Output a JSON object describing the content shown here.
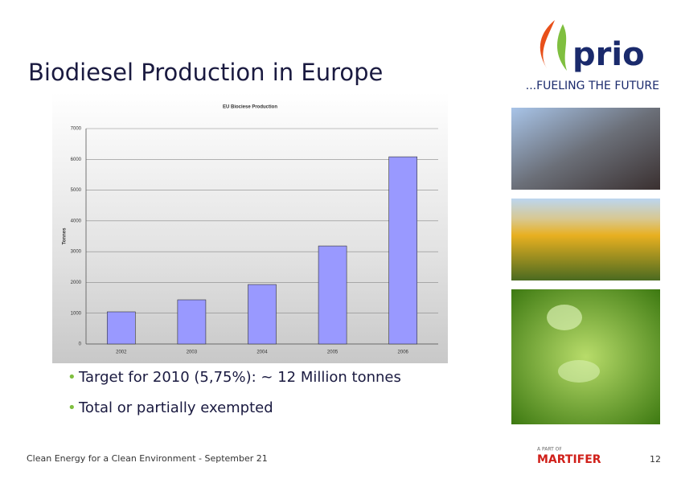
{
  "title": "Biodiesel Production in Europe",
  "bullets": [
    "Target for 2010 (5,75%): ~ 12 Million tonnes",
    "Total or partially exempted"
  ],
  "footer": "Clean Energy for a Clean Environment - September 21",
  "page_number": "12",
  "logo": {
    "name": "prio",
    "tagline": "...FUELING THE FUTURE"
  },
  "partner": {
    "prefix": "A PART OF",
    "name": "MARTIFER"
  },
  "chart_data": {
    "type": "bar",
    "title": "EU Biociese Production",
    "y_label": "Tonnes",
    "categories": [
      "2002",
      "2003",
      "2004",
      "2005",
      "2006"
    ],
    "values": [
      1045,
      1436,
      1932,
      3185,
      6083
    ],
    "color": "#9999ff",
    "ylim": [
      0,
      7000
    ],
    "yticks": [
      0,
      1000,
      2000,
      3000,
      4000,
      5000,
      6000,
      7000
    ],
    "grid": true
  }
}
